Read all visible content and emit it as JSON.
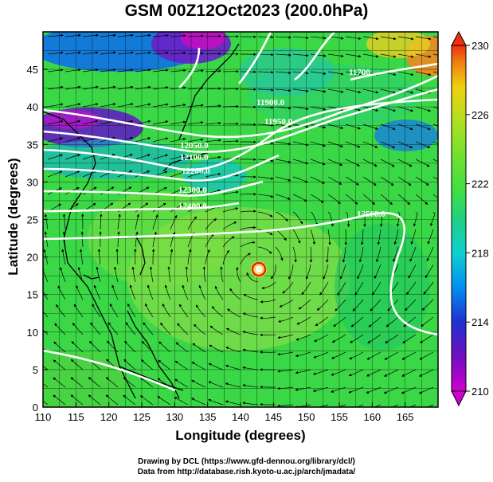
{
  "title": "GSM 00Z12Oct2023 (200.0hPa)",
  "x_axis": {
    "label": "Longitude (degrees)",
    "range": [
      110,
      170
    ],
    "ticks": [
      "110",
      "115",
      "120",
      "125",
      "130",
      "135",
      "140",
      "145",
      "150",
      "155",
      "160",
      "165"
    ]
  },
  "y_axis": {
    "label": "Latitude  (degrees)",
    "range": [
      0,
      50
    ],
    "ticks": [
      "0",
      "5",
      "10",
      "15",
      "20",
      "25",
      "30",
      "35",
      "40",
      "45"
    ]
  },
  "colorbar": {
    "range": [
      210,
      230
    ],
    "tick_labels": [
      "230",
      "226",
      "222",
      "218",
      "214",
      "210"
    ],
    "colors": [
      "#d000d0",
      "#7010c0",
      "#2030d0",
      "#0090f0",
      "#10d0d0",
      "#20d080",
      "#40e040",
      "#70e030",
      "#b0e020",
      "#f0d010",
      "#f08010",
      "#f03010"
    ]
  },
  "contour_labels": [
    "11700",
    "11900.0",
    "11950.0",
    "12050.0",
    "12100.0",
    "12200.0",
    "12300.0",
    "12400.0",
    "12500.0"
  ],
  "credits": {
    "line1": "Drawing by DCL (https://www.gfd-dennou.org/library/dcl/)",
    "line2": "Data from http://database.rish.kyoto-u.ac.jp/arch/jmadata/"
  }
}
